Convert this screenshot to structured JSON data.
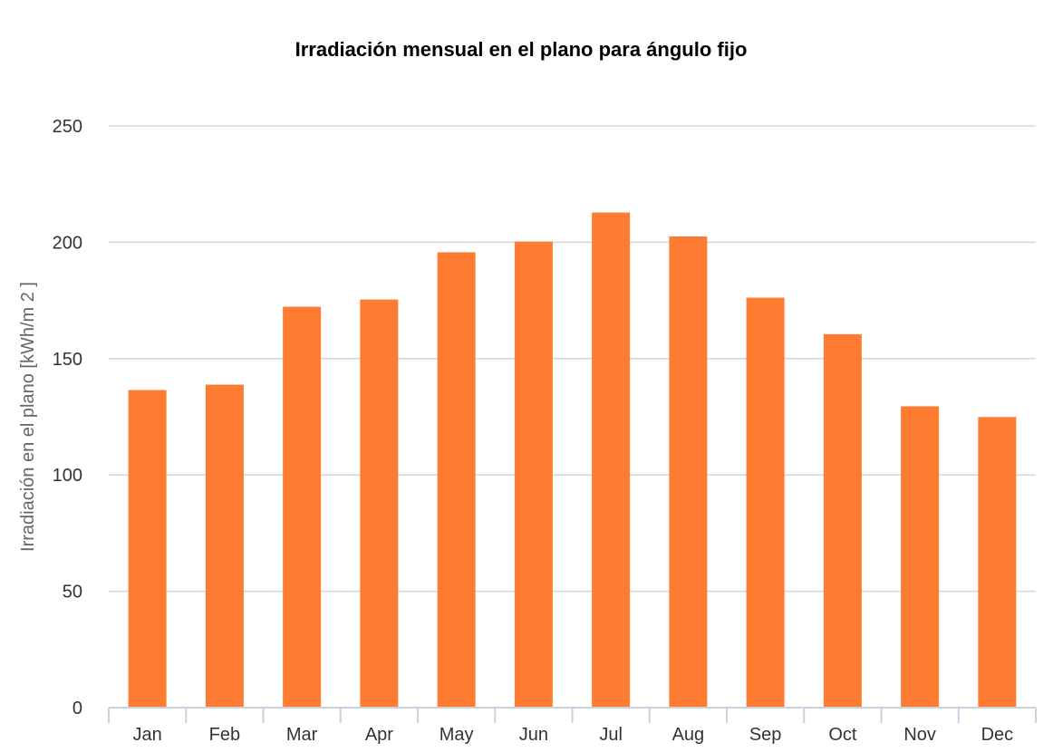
{
  "chart_data": {
    "type": "bar",
    "title": "Irradiación mensual en el plano para ángulo fijo",
    "ylabel": "Irradiación en el plano [kWh/m 2 ]",
    "xlabel": "",
    "categories": [
      "Jan",
      "Feb",
      "Mar",
      "Apr",
      "May",
      "Jun",
      "Jul",
      "Aug",
      "Sep",
      "Oct",
      "Nov",
      "Dec"
    ],
    "values": [
      136.5,
      138.8,
      172.3,
      175.4,
      195.7,
      200.3,
      212.8,
      202.5,
      176.2,
      160.5,
      129.5,
      124.9
    ],
    "ylim": [
      0,
      250
    ],
    "yticks": [
      "0",
      "50",
      "100",
      "150",
      "200",
      "250"
    ],
    "grid": true,
    "legend": "none",
    "bar_color": "#fd7c32"
  }
}
